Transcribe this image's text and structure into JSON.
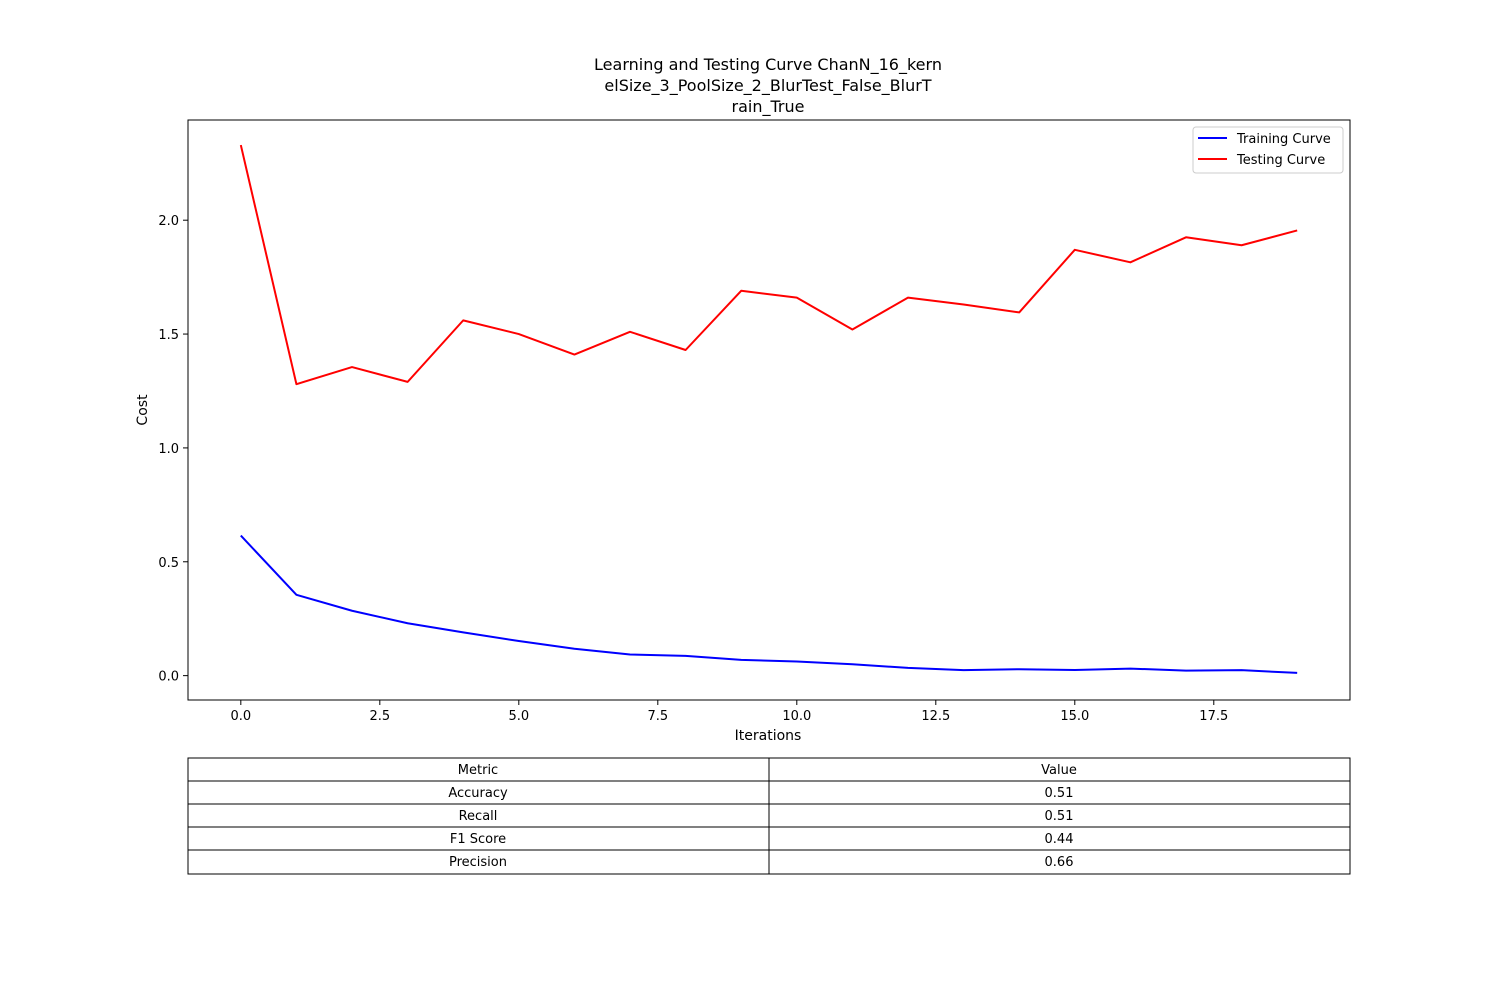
{
  "chart_data": {
    "type": "line",
    "title_lines": [
      "Learning and Testing Curve ChanN_16_kern",
      "elSize_3_PoolSize_2_BlurTest_False_BlurT",
      "rain_True"
    ],
    "xlabel": "Iterations",
    "ylabel": "Cost",
    "xlim": [
      -0.95,
      19.95
    ],
    "ylim": [
      -0.107,
      2.44
    ],
    "x_ticks": [
      0.0,
      2.5,
      5.0,
      7.5,
      10.0,
      12.5,
      15.0,
      17.5
    ],
    "y_ticks": [
      0.0,
      0.5,
      1.0,
      1.5,
      2.0
    ],
    "grid": false,
    "legend_position": "upper right",
    "x": [
      0,
      1,
      2,
      3,
      4,
      5,
      6,
      7,
      8,
      9,
      10,
      11,
      12,
      13,
      14,
      15,
      16,
      17,
      18,
      19
    ],
    "series": [
      {
        "name": "Training Curve",
        "color": "#0000ff",
        "values": [
          0.615,
          0.355,
          0.285,
          0.23,
          0.19,
          0.152,
          0.118,
          0.093,
          0.087,
          0.069,
          0.062,
          0.05,
          0.034,
          0.024,
          0.028,
          0.025,
          0.031,
          0.022,
          0.024,
          0.012
        ]
      },
      {
        "name": "Testing Curve",
        "color": "#ff0000",
        "values": [
          2.33,
          1.28,
          1.355,
          1.29,
          1.56,
          1.5,
          1.41,
          1.51,
          1.43,
          1.69,
          1.66,
          1.52,
          1.66,
          1.63,
          1.595,
          1.87,
          1.815,
          1.925,
          1.89,
          1.955
        ]
      }
    ],
    "table": {
      "headers": [
        "Metric",
        "Value"
      ],
      "rows": [
        [
          "Accuracy",
          "0.51"
        ],
        [
          "Recall",
          "0.51"
        ],
        [
          "F1 Score",
          "0.44"
        ],
        [
          "Precision",
          "0.66"
        ]
      ]
    }
  }
}
